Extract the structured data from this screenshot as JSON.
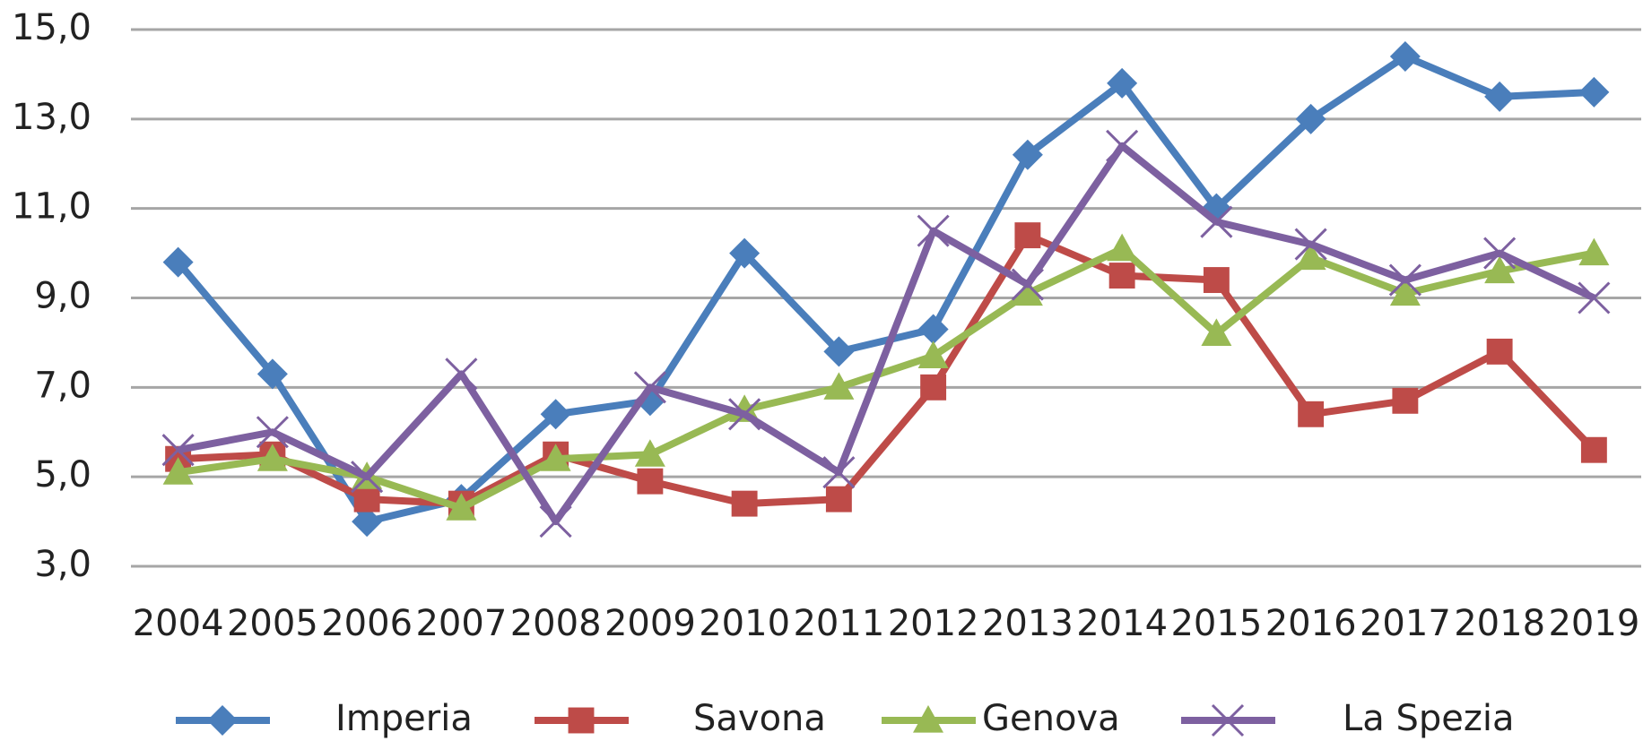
{
  "chart_data": {
    "type": "line",
    "categories": [
      "2004",
      "2005",
      "2006",
      "2007",
      "2008",
      "2009",
      "2010",
      "2011",
      "2012",
      "2013",
      "2014",
      "2015",
      "2016",
      "2017",
      "2018",
      "2019"
    ],
    "series": [
      {
        "name": "Imperia",
        "color": "#4a7ebb",
        "marker": "diamond",
        "values": [
          9.8,
          7.3,
          4.0,
          4.5,
          6.4,
          6.7,
          10.0,
          7.8,
          8.3,
          12.2,
          13.8,
          11.0,
          13.0,
          14.4,
          13.5,
          13.6
        ]
      },
      {
        "name": "Savona",
        "color": "#be4b48",
        "marker": "square",
        "values": [
          5.4,
          5.5,
          4.5,
          4.4,
          5.5,
          4.9,
          4.4,
          4.5,
          7.0,
          10.4,
          9.5,
          9.4,
          6.4,
          6.7,
          7.8,
          5.6
        ]
      },
      {
        "name": "Genova",
        "color": "#98b954",
        "marker": "triangle",
        "values": [
          5.1,
          5.4,
          5.0,
          4.3,
          5.4,
          5.5,
          6.5,
          7.0,
          7.7,
          9.1,
          10.1,
          8.2,
          9.9,
          9.1,
          9.6,
          10.0
        ]
      },
      {
        "name": "La Spezia",
        "color": "#7d60a0",
        "marker": "x",
        "values": [
          5.6,
          6.0,
          5.0,
          7.3,
          4.0,
          7.0,
          6.4,
          5.1,
          10.5,
          9.3,
          12.4,
          10.7,
          10.2,
          9.4,
          10.0,
          9.0
        ]
      }
    ],
    "ylim": [
      3,
      15
    ],
    "yticks": [
      {
        "value": 3,
        "label": "3,0"
      },
      {
        "value": 5,
        "label": "5,0"
      },
      {
        "value": 7,
        "label": "7,0"
      },
      {
        "value": 9,
        "label": "9,0"
      },
      {
        "value": 11,
        "label": "11,0"
      },
      {
        "value": 13,
        "label": "13,0"
      },
      {
        "value": 15,
        "label": "15,0"
      }
    ],
    "grid": true,
    "legend": "bottom"
  }
}
